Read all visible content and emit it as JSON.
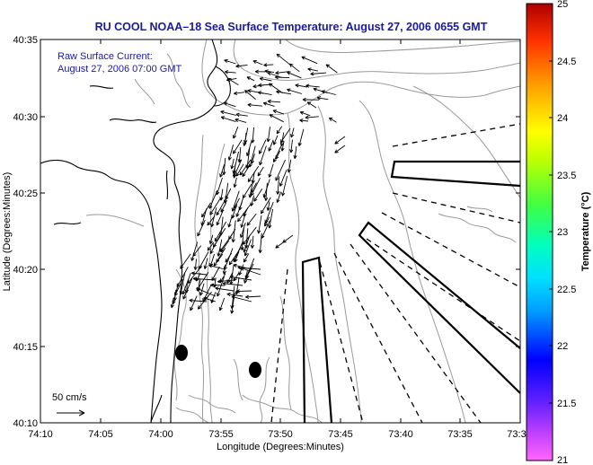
{
  "title": "RU COOL  NOAA–18  Sea Surface Temperature:  August 27, 2006 0655 GMT",
  "current_note": {
    "line1": "Raw Surface Current:",
    "line2": "August 27, 2006 07:00 GMT"
  },
  "scale_label": "50 cm/s",
  "xlabel": "Longitude (Degrees:Minutes)",
  "ylabel": "Latitude (Degrees:Minutes)",
  "x_ticks": [
    "74:10",
    "74:05",
    "74:00",
    "73:55",
    "73:50",
    "73:45",
    "73:40",
    "73:35",
    "73:3"
  ],
  "y_ticks": [
    "40:35",
    "40:30",
    "40:25",
    "40:20",
    "40:15",
    "40:10"
  ],
  "colorbar": {
    "label": "Temperature (°C)",
    "ticks": [
      "25",
      "24.5",
      "24",
      "23.5",
      "23",
      "22.5",
      "22",
      "21.5",
      "21"
    ],
    "range": [
      21,
      25
    ]
  },
  "colors": {
    "title": "#1a1aa0",
    "land_outline": "#000000",
    "bathymetry": "#9a9a9a"
  }
}
